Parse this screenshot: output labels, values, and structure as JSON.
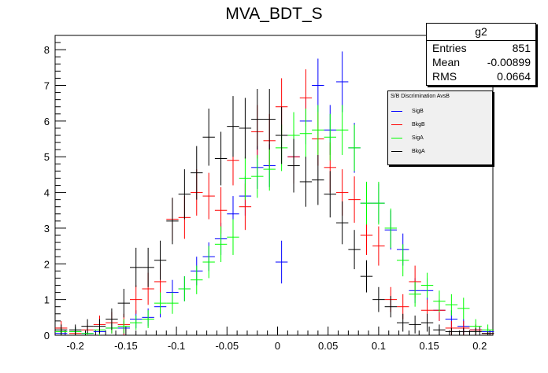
{
  "chart_data": {
    "type": "scatter",
    "title": "MVA_BDT_S",
    "xlim": [
      -0.22,
      0.213
    ],
    "ylim": [
      0,
      8.4
    ],
    "xticks": [
      -0.2,
      -0.15,
      -0.1,
      -0.05,
      0,
      0.05,
      0.1,
      0.15,
      0.2
    ],
    "xtick_labels": [
      "-0.2",
      "-0.15",
      "-0.1",
      "-0.05",
      "0",
      "0.05",
      "0.1",
      "0.15",
      "0.2"
    ],
    "yticks": [
      0,
      1,
      2,
      3,
      4,
      5,
      6,
      7,
      8
    ],
    "ytick_labels": [
      "0",
      "1",
      "2",
      "3",
      "4",
      "5",
      "6",
      "7",
      "8"
    ],
    "bin_half_width": 0.006,
    "stats": {
      "name": "g2",
      "rows": [
        {
          "label": "Entries",
          "value": "851"
        },
        {
          "label": "Mean",
          "value": "-0.00899"
        },
        {
          "label": "RMS",
          "value": "0.0664"
        }
      ]
    },
    "legend": {
      "title": "S/B Discrimination AvsB",
      "position": "top-right"
    },
    "series": [
      {
        "name": "SigB",
        "color": "#0000ff",
        "points": [
          [
            -0.214,
            0.05,
            0.05
          ],
          [
            -0.2,
            0.1,
            0.1
          ],
          [
            -0.188,
            0.05,
            0.05
          ],
          [
            -0.176,
            0.1,
            0.1
          ],
          [
            -0.164,
            0.2,
            0.15
          ],
          [
            -0.152,
            0.2,
            0.2
          ],
          [
            -0.14,
            0.45,
            0.25
          ],
          [
            -0.128,
            0.5,
            0.25
          ],
          [
            -0.116,
            0.8,
            0.3
          ],
          [
            -0.104,
            1.2,
            0.35
          ],
          [
            -0.092,
            1.3,
            0.35
          ],
          [
            -0.08,
            1.8,
            0.4
          ],
          [
            -0.068,
            2.2,
            0.4
          ],
          [
            -0.056,
            2.7,
            0.45
          ],
          [
            -0.044,
            3.4,
            0.5
          ],
          [
            -0.032,
            3.9,
            0.55
          ],
          [
            -0.02,
            4.7,
            0.6
          ],
          [
            -0.008,
            4.75,
            0.6
          ],
          [
            0.004,
            2.05,
            0.6
          ],
          [
            0.016,
            5.0,
            0.65
          ],
          [
            0.028,
            6.0,
            0.65
          ],
          [
            0.04,
            7.0,
            0.75
          ],
          [
            0.052,
            5.75,
            0.7
          ],
          [
            0.064,
            7.1,
            0.85
          ],
          [
            0.076,
            5.25,
            0.7
          ],
          [
            0.088,
            3.7,
            0.6
          ],
          [
            0.1,
            3.7,
            0.55
          ],
          [
            0.112,
            2.95,
            0.55
          ],
          [
            0.124,
            2.4,
            0.45
          ],
          [
            0.136,
            1.25,
            0.35
          ],
          [
            0.148,
            1.25,
            0.35
          ],
          [
            0.16,
            0.7,
            0.3
          ],
          [
            0.172,
            0.45,
            0.25
          ],
          [
            0.184,
            0.25,
            0.2
          ],
          [
            0.196,
            0.15,
            0.15
          ],
          [
            0.208,
            0.1,
            0.1
          ]
        ]
      },
      {
        "name": "BkgB",
        "color": "#ff0000",
        "points": [
          [
            -0.214,
            0.2,
            0.2
          ],
          [
            -0.2,
            0.05,
            0.05
          ],
          [
            -0.188,
            0.15,
            0.15
          ],
          [
            -0.176,
            0.3,
            0.25
          ],
          [
            -0.164,
            0.35,
            0.3
          ],
          [
            -0.152,
            0.3,
            0.3
          ],
          [
            -0.14,
            1.0,
            0.4
          ],
          [
            -0.128,
            1.3,
            0.45
          ],
          [
            -0.116,
            1.5,
            0.5
          ],
          [
            -0.104,
            3.25,
            0.6
          ],
          [
            -0.092,
            3.3,
            0.6
          ],
          [
            -0.08,
            4.0,
            0.65
          ],
          [
            -0.068,
            3.9,
            0.65
          ],
          [
            -0.056,
            3.5,
            0.65
          ],
          [
            -0.044,
            4.9,
            0.7
          ],
          [
            -0.032,
            3.6,
            0.65
          ],
          [
            -0.02,
            5.7,
            0.75
          ],
          [
            -0.008,
            5.45,
            0.75
          ],
          [
            0.004,
            6.4,
            0.8
          ],
          [
            0.016,
            5.0,
            0.75
          ],
          [
            0.028,
            6.65,
            0.8
          ],
          [
            0.04,
            5.5,
            0.75
          ],
          [
            0.052,
            4.7,
            0.7
          ],
          [
            0.064,
            4.0,
            0.65
          ],
          [
            0.076,
            3.8,
            0.65
          ],
          [
            0.088,
            2.8,
            0.55
          ],
          [
            0.1,
            2.5,
            0.55
          ],
          [
            0.112,
            1.0,
            0.35
          ],
          [
            0.124,
            0.8,
            0.35
          ],
          [
            0.136,
            1.5,
            0.45
          ],
          [
            0.148,
            0.7,
            0.3
          ],
          [
            0.16,
            0.7,
            0.3
          ],
          [
            0.172,
            0.2,
            0.2
          ],
          [
            0.184,
            0.2,
            0.2
          ],
          [
            0.196,
            0.15,
            0.15
          ],
          [
            0.208,
            0.05,
            0.05
          ]
        ]
      },
      {
        "name": "SigA",
        "color": "#00ff00",
        "points": [
          [
            -0.214,
            0.1,
            0.1
          ],
          [
            -0.2,
            0.1,
            0.1
          ],
          [
            -0.188,
            0.05,
            0.05
          ],
          [
            -0.176,
            0.15,
            0.15
          ],
          [
            -0.164,
            0.2,
            0.15
          ],
          [
            -0.152,
            0.25,
            0.2
          ],
          [
            -0.14,
            0.35,
            0.2
          ],
          [
            -0.128,
            0.45,
            0.25
          ],
          [
            -0.116,
            0.9,
            0.3
          ],
          [
            -0.104,
            0.9,
            0.3
          ],
          [
            -0.092,
            1.3,
            0.35
          ],
          [
            -0.08,
            1.55,
            0.4
          ],
          [
            -0.068,
            2.05,
            0.45
          ],
          [
            -0.056,
            2.55,
            0.5
          ],
          [
            -0.044,
            2.75,
            0.5
          ],
          [
            -0.032,
            4.4,
            0.6
          ],
          [
            -0.02,
            4.45,
            0.6
          ],
          [
            -0.008,
            4.65,
            0.6
          ],
          [
            0.004,
            5.25,
            0.65
          ],
          [
            0.016,
            5.6,
            0.65
          ],
          [
            0.028,
            5.65,
            0.7
          ],
          [
            0.04,
            5.75,
            0.7
          ],
          [
            0.052,
            5.55,
            0.65
          ],
          [
            0.064,
            5.75,
            0.7
          ],
          [
            0.076,
            5.25,
            0.65
          ],
          [
            0.088,
            3.7,
            0.6
          ],
          [
            0.1,
            3.7,
            0.6
          ],
          [
            0.112,
            3.0,
            0.55
          ],
          [
            0.124,
            2.1,
            0.45
          ],
          [
            0.136,
            1.15,
            0.35
          ],
          [
            0.148,
            1.4,
            0.35
          ],
          [
            0.16,
            0.95,
            0.3
          ],
          [
            0.172,
            0.85,
            0.3
          ],
          [
            0.184,
            0.75,
            0.3
          ],
          [
            0.196,
            0.25,
            0.2
          ],
          [
            0.208,
            0.15,
            0.15
          ]
        ]
      },
      {
        "name": "BkgA",
        "color": "#000000",
        "points": [
          [
            -0.214,
            0.15,
            0.15
          ],
          [
            -0.2,
            0.15,
            0.15
          ],
          [
            -0.188,
            0.25,
            0.2
          ],
          [
            -0.176,
            0.25,
            0.2
          ],
          [
            -0.164,
            0.45,
            0.3
          ],
          [
            -0.152,
            0.9,
            0.4
          ],
          [
            -0.14,
            1.9,
            0.55
          ],
          [
            -0.128,
            1.9,
            0.55
          ],
          [
            -0.116,
            2.1,
            0.55
          ],
          [
            -0.104,
            3.2,
            0.65
          ],
          [
            -0.092,
            3.95,
            0.7
          ],
          [
            -0.08,
            4.55,
            0.75
          ],
          [
            -0.068,
            5.55,
            0.8
          ],
          [
            -0.056,
            4.95,
            0.75
          ],
          [
            -0.044,
            5.85,
            0.85
          ],
          [
            -0.032,
            5.8,
            0.85
          ],
          [
            -0.02,
            6.05,
            0.85
          ],
          [
            -0.008,
            6.05,
            0.85
          ],
          [
            0.004,
            5.6,
            0.8
          ],
          [
            0.016,
            4.75,
            0.75
          ],
          [
            0.028,
            4.3,
            0.7
          ],
          [
            0.04,
            4.35,
            0.7
          ],
          [
            0.052,
            3.95,
            0.65
          ],
          [
            0.064,
            3.15,
            0.6
          ],
          [
            0.076,
            2.4,
            0.55
          ],
          [
            0.088,
            1.65,
            0.45
          ],
          [
            0.1,
            1.0,
            0.35
          ],
          [
            0.112,
            0.8,
            0.3
          ],
          [
            0.124,
            0.35,
            0.25
          ],
          [
            0.136,
            0.3,
            0.25
          ],
          [
            0.148,
            0.35,
            0.25
          ],
          [
            0.16,
            0.15,
            0.15
          ],
          [
            0.172,
            0.1,
            0.1
          ],
          [
            0.184,
            0.1,
            0.1
          ],
          [
            0.196,
            0.1,
            0.1
          ],
          [
            0.208,
            0.05,
            0.05
          ]
        ]
      }
    ]
  }
}
